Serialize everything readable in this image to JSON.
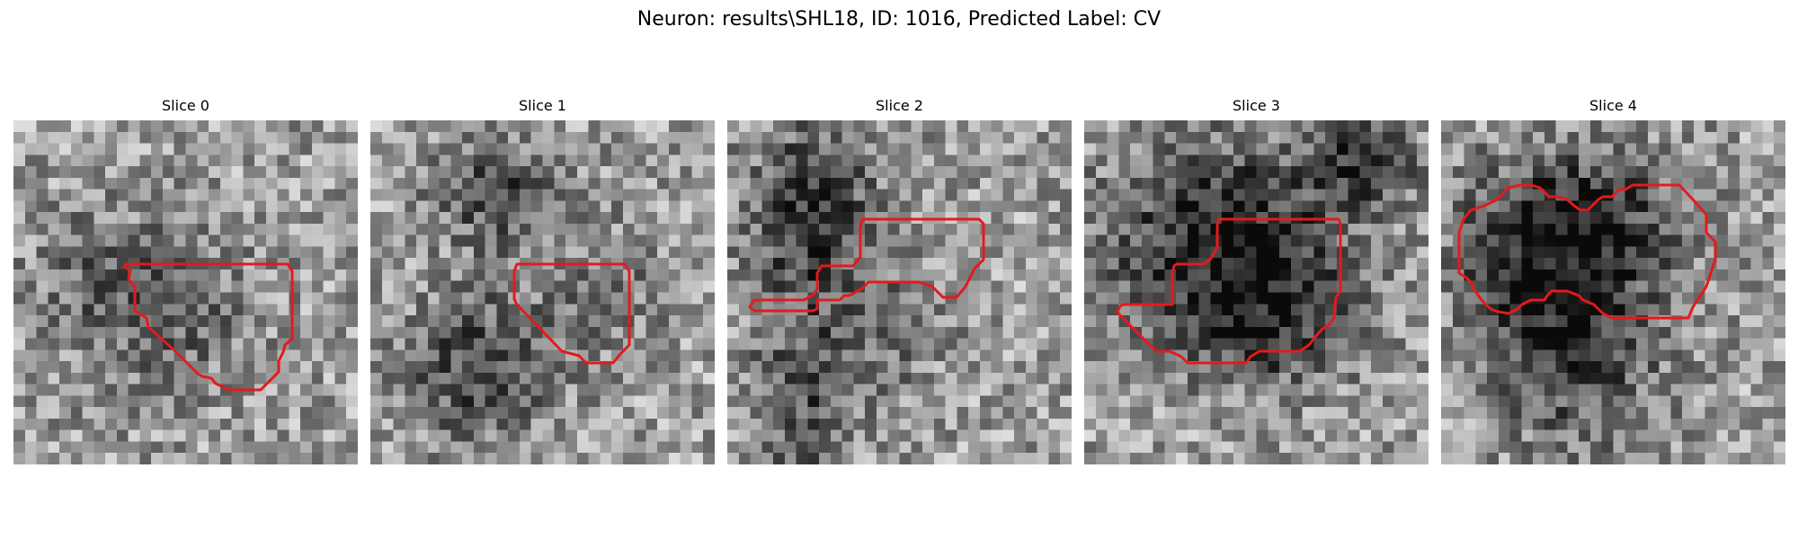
{
  "figure": {
    "title": "Neuron: results\\SHL18, ID: 1016, Predicted Label: CV"
  },
  "panels": [
    {
      "title": "Slice 0"
    },
    {
      "title": "Slice 1"
    },
    {
      "title": "Slice 2"
    },
    {
      "title": "Slice 3"
    },
    {
      "title": "Slice 4"
    }
  ],
  "colors": {
    "contour": "#e41a1c",
    "background": "#ffffff"
  }
}
